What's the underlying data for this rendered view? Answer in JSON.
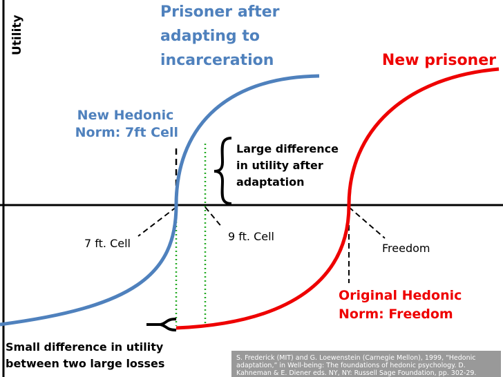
{
  "axis_label": "Utility",
  "labels": {
    "adapted_prisoner": [
      "Prisoner after",
      "adapting to",
      "incarceration"
    ],
    "new_prisoner": "New prisoner",
    "new_norm": [
      "New Hedonic",
      "Norm: 7ft Cell"
    ],
    "large_difference": [
      "Large difference",
      "in utility after",
      "adaptation"
    ],
    "cell_7": "7 ft. Cell",
    "cell_9": "9 ft. Cell",
    "freedom": "Freedom",
    "original_norm": [
      "Original Hedonic",
      "Norm: Freedom"
    ],
    "small_difference": [
      "Small difference in utility",
      "between two large losses"
    ]
  },
  "citation": [
    "S. Frederick (MIT) and G. Loewenstein (Carnegie Mellon), 1999, “Hedonic",
    "adaptation,” in Well-being: The foundations of hedonic psychology. D.",
    "Kahneman & E. Diener eds. NY, NY: Russell Sage Foundation, pp. 302-29."
  ]
}
